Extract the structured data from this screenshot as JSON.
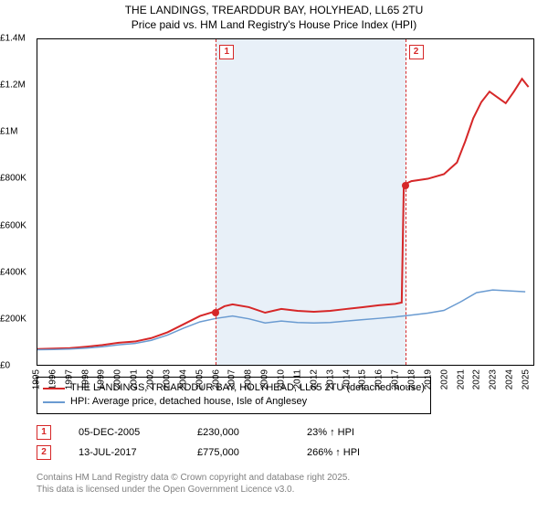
{
  "title": {
    "line1": "THE LANDINGS, TREARDDUR BAY, HOLYHEAD, LL65 2TU",
    "line2": "Price paid vs. HM Land Registry's House Price Index (HPI)"
  },
  "chart": {
    "type": "line",
    "background_color": "#ffffff",
    "plot_border_color": "#000000",
    "highlight_band": {
      "x_start": 2005.93,
      "x_end": 2017.53,
      "fill": "#e8f0f8"
    },
    "x": {
      "min": 1995,
      "max": 2025.5,
      "ticks": [
        1995,
        1996,
        1997,
        1998,
        1999,
        2000,
        2001,
        2002,
        2003,
        2004,
        2005,
        2006,
        2007,
        2008,
        2009,
        2010,
        2011,
        2012,
        2013,
        2014,
        2015,
        2016,
        2017,
        2018,
        2019,
        2020,
        2021,
        2022,
        2023,
        2024,
        2025
      ],
      "label_fontsize": 10
    },
    "y": {
      "min": 0,
      "max": 1400000,
      "ticks": [
        0,
        200000,
        400000,
        600000,
        800000,
        1000000,
        1200000,
        1400000
      ],
      "tick_labels": [
        "£0",
        "£200K",
        "£400K",
        "£600K",
        "£800K",
        "£1M",
        "£1.2M",
        "£1.4M"
      ],
      "label_fontsize": 10
    },
    "series": [
      {
        "name": "THE LANDINGS, TREARDDUR BAY, HOLYHEAD, LL65 2TU (detached house)",
        "color": "#d62728",
        "line_width": 2,
        "data": [
          [
            1995,
            68000
          ],
          [
            1996,
            70000
          ],
          [
            1997,
            72000
          ],
          [
            1998,
            78000
          ],
          [
            1999,
            85000
          ],
          [
            2000,
            95000
          ],
          [
            2001,
            100000
          ],
          [
            2002,
            115000
          ],
          [
            2003,
            140000
          ],
          [
            2004,
            175000
          ],
          [
            2005,
            210000
          ],
          [
            2005.93,
            230000
          ],
          [
            2006.5,
            252000
          ],
          [
            2007,
            260000
          ],
          [
            2008,
            248000
          ],
          [
            2009,
            224000
          ],
          [
            2010,
            240000
          ],
          [
            2011,
            232000
          ],
          [
            2012,
            228000
          ],
          [
            2013,
            232000
          ],
          [
            2014,
            240000
          ],
          [
            2015,
            248000
          ],
          [
            2016,
            256000
          ],
          [
            2017,
            262000
          ],
          [
            2017.4,
            268000
          ],
          [
            2017.53,
            775000
          ],
          [
            2018,
            790000
          ],
          [
            2019,
            800000
          ],
          [
            2020,
            820000
          ],
          [
            2020.8,
            870000
          ],
          [
            2021.3,
            960000
          ],
          [
            2021.8,
            1060000
          ],
          [
            2022.3,
            1130000
          ],
          [
            2022.8,
            1175000
          ],
          [
            2023.3,
            1150000
          ],
          [
            2023.8,
            1125000
          ],
          [
            2024.3,
            1175000
          ],
          [
            2024.8,
            1230000
          ],
          [
            2025.2,
            1195000
          ]
        ]
      },
      {
        "name": "HPI: Average price, detached house, Isle of Anglesey",
        "color": "#6a9bd1",
        "line_width": 1.5,
        "data": [
          [
            1995,
            65000
          ],
          [
            1996,
            66000
          ],
          [
            1997,
            68000
          ],
          [
            1998,
            72000
          ],
          [
            1999,
            78000
          ],
          [
            2000,
            86000
          ],
          [
            2001,
            92000
          ],
          [
            2002,
            105000
          ],
          [
            2003,
            128000
          ],
          [
            2004,
            158000
          ],
          [
            2005,
            185000
          ],
          [
            2006,
            200000
          ],
          [
            2007,
            210000
          ],
          [
            2008,
            198000
          ],
          [
            2009,
            180000
          ],
          [
            2010,
            188000
          ],
          [
            2011,
            182000
          ],
          [
            2012,
            180000
          ],
          [
            2013,
            182000
          ],
          [
            2014,
            188000
          ],
          [
            2015,
            194000
          ],
          [
            2016,
            200000
          ],
          [
            2017,
            206000
          ],
          [
            2018,
            214000
          ],
          [
            2019,
            222000
          ],
          [
            2020,
            234000
          ],
          [
            2021,
            270000
          ],
          [
            2022,
            310000
          ],
          [
            2023,
            322000
          ],
          [
            2024,
            318000
          ],
          [
            2025,
            314000
          ]
        ]
      }
    ],
    "markers": [
      {
        "n": "1",
        "x": 2005.93,
        "y": 230000,
        "color": "#d62728"
      },
      {
        "n": "2",
        "x": 2017.53,
        "y": 775000,
        "color": "#d62728"
      }
    ]
  },
  "legend": {
    "items": [
      {
        "color": "#d62728",
        "width": 2,
        "label": "THE LANDINGS, TREARDDUR BAY, HOLYHEAD, LL65 2TU (detached house)"
      },
      {
        "color": "#6a9bd1",
        "width": 1.5,
        "label": "HPI: Average price, detached house, Isle of Anglesey"
      }
    ]
  },
  "events": [
    {
      "n": "1",
      "color": "#d62728",
      "date": "05-DEC-2005",
      "price": "£230,000",
      "pct": "23% ↑ HPI"
    },
    {
      "n": "2",
      "color": "#d62728",
      "date": "13-JUL-2017",
      "price": "£775,000",
      "pct": "266% ↑ HPI"
    }
  ],
  "footer": {
    "line1": "Contains HM Land Registry data © Crown copyright and database right 2025.",
    "line2": "This data is licensed under the Open Government Licence v3.0."
  }
}
